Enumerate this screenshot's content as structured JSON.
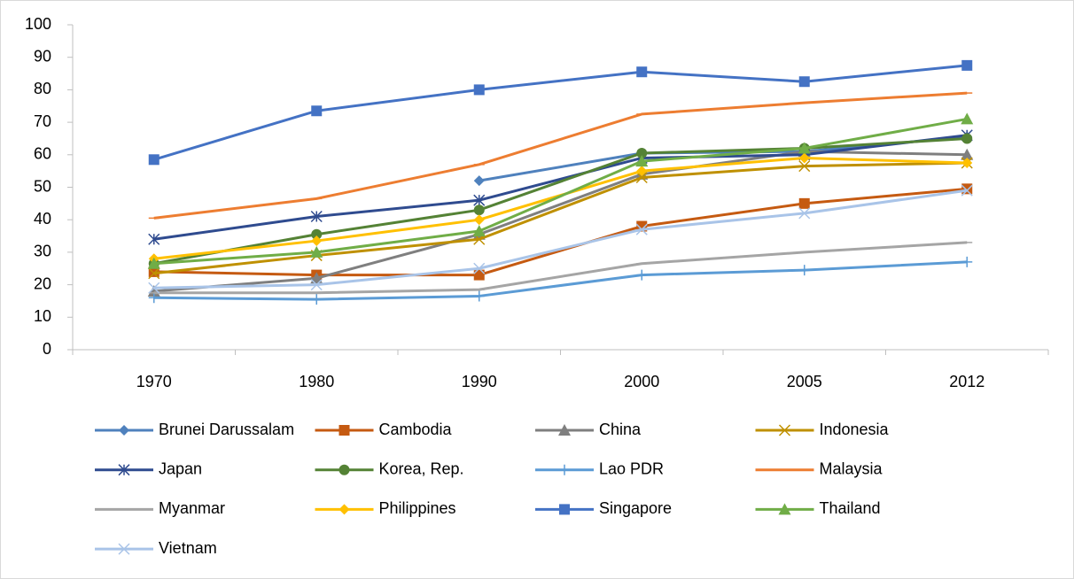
{
  "chart_data": {
    "type": "line",
    "categories": [
      "1970",
      "1980",
      "1990",
      "2000",
      "2005",
      "2012"
    ],
    "ylim": [
      0,
      100
    ],
    "yticks": [
      0,
      10,
      20,
      30,
      40,
      50,
      60,
      70,
      80,
      90,
      100
    ],
    "grid": false,
    "legend": "bottom",
    "series": [
      {
        "name": "Brunei Darussalam",
        "color": "#4f81bd",
        "marker": "diamond",
        "values": [
          null,
          null,
          52,
          60.5,
          61,
          65.5
        ]
      },
      {
        "name": "Cambodia",
        "color": "#c55a11",
        "marker": "square",
        "values": [
          24,
          23,
          23,
          38,
          45,
          49.5
        ]
      },
      {
        "name": "China",
        "color": "#7f7f7f",
        "marker": "triangle",
        "values": [
          18,
          22,
          35.5,
          54,
          61,
          60
        ]
      },
      {
        "name": "Indonesia",
        "color": "#bf9000",
        "marker": "x",
        "values": [
          23.5,
          29,
          34,
          53,
          56.5,
          57.5
        ]
      },
      {
        "name": "Japan",
        "color": "#2f4b8f",
        "marker": "star",
        "values": [
          34,
          41,
          46,
          59,
          60,
          66
        ]
      },
      {
        "name": "Korea, Rep.",
        "color": "#548235",
        "marker": "circle",
        "values": [
          26.5,
          35.5,
          43,
          60.5,
          62,
          65
        ]
      },
      {
        "name": "Lao PDR",
        "color": "#5b9bd5",
        "marker": "plus",
        "values": [
          16,
          15.5,
          16.5,
          23,
          24.5,
          27
        ]
      },
      {
        "name": "Malaysia",
        "color": "#ed7d31",
        "marker": "dash",
        "values": [
          40.5,
          46.5,
          57,
          72.5,
          76,
          79
        ]
      },
      {
        "name": "Myanmar",
        "color": "#a5a5a5",
        "marker": "dash",
        "values": [
          17.5,
          17.5,
          18.5,
          26.5,
          30,
          33
        ]
      },
      {
        "name": "Philippines",
        "color": "#ffc000",
        "marker": "diamond",
        "values": [
          28,
          33.5,
          40,
          55,
          59,
          57.5
        ]
      },
      {
        "name": "Singapore",
        "color": "#4472c4",
        "marker": "square",
        "values": [
          58.5,
          73.5,
          80,
          85.5,
          82.5,
          87.5
        ]
      },
      {
        "name": "Thailand",
        "color": "#70ad47",
        "marker": "triangle",
        "values": [
          26.5,
          30,
          36.5,
          58,
          62,
          71
        ]
      },
      {
        "name": "Vietnam",
        "color": "#a9c4e8",
        "marker": "x",
        "values": [
          19,
          20,
          25,
          37,
          42,
          49
        ]
      }
    ]
  }
}
